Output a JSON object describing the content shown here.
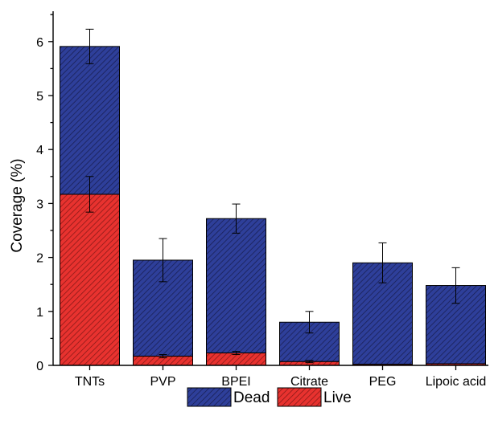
{
  "chart_data": {
    "type": "bar",
    "stacked": true,
    "title": "",
    "xlabel": "",
    "ylabel": "Coverage (%)",
    "ylim": [
      0,
      6.5
    ],
    "yticks": [
      0,
      1,
      2,
      3,
      4,
      5,
      6
    ],
    "categories": [
      "TNTs",
      "PVP",
      "BPEI",
      "Citrate",
      "PEG",
      "Lipoic acid"
    ],
    "series": [
      {
        "name": "Live",
        "color": "#e8322f",
        "values": [
          3.17,
          0.17,
          0.23,
          0.07,
          0.02,
          0.03
        ],
        "errors": [
          0.33,
          0.03,
          0.03,
          0.02,
          0.0,
          0.0
        ]
      },
      {
        "name": "Dead",
        "color": "#2e3f9a",
        "totals": [
          5.91,
          1.95,
          2.72,
          0.8,
          1.9,
          1.48
        ],
        "errors": [
          0.32,
          0.4,
          0.27,
          0.2,
          0.37,
          0.33
        ]
      }
    ],
    "legend": {
      "position": "bottom",
      "order": [
        "Dead",
        "Live"
      ]
    },
    "grid": false
  }
}
